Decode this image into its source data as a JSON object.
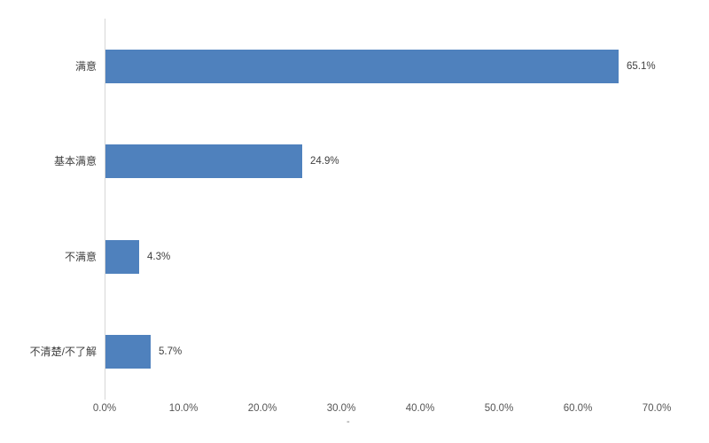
{
  "chart_data": {
    "type": "bar",
    "orientation": "horizontal",
    "title": "",
    "categories": [
      "满意",
      "基本满意",
      "不满意",
      "不清楚/不了解"
    ],
    "values": [
      65.1,
      24.9,
      4.3,
      5.7
    ],
    "data_labels": [
      "65.1%",
      "24.9%",
      "4.3%",
      "5.7%"
    ],
    "x_ticks": [
      "0.0%",
      "10.0%",
      "20.0%",
      "30.0%",
      "40.0%",
      "50.0%",
      "60.0%",
      "70.0%"
    ],
    "xlim": [
      0,
      70
    ],
    "xlabel": "",
    "ylabel": "",
    "grid": false,
    "legend": false,
    "bar_color": "#4F81BD",
    "axis_line_color": "#D6D6D6",
    "text_color": "#3F3F3F",
    "tick_text_color": "#555555",
    "axis_note": "-"
  }
}
